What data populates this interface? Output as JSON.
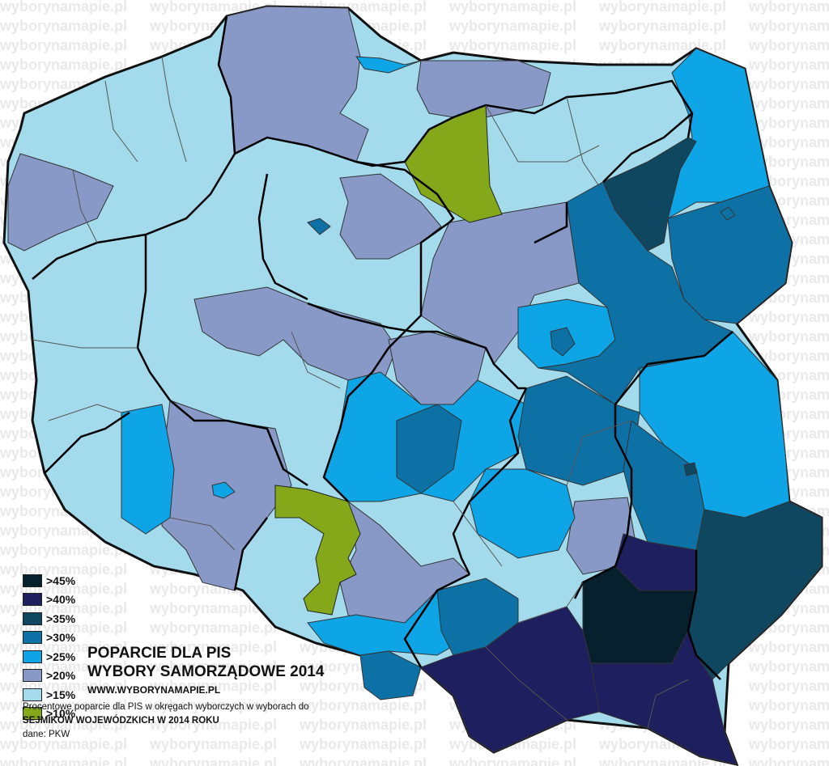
{
  "title_line1": "POPARCIE DLA PIS",
  "title_line2": "WYBORY SAMORZĄDOWE 2014",
  "website": "WWW.WYBORYNAMAPIE.PL",
  "description_line1": "Procentowe poparcie dla PIS w okręgach wyborczych w wyborach do",
  "description_line2": "SEJMIKÓW WOJEWÓDZKICH W 2014 ROKU",
  "source": "dane: PKW",
  "watermark_text": "wyborynamapie.pl",
  "legend": [
    {
      "label": ">45%",
      "color": "#07202e"
    },
    {
      "label": ">40%",
      "color": "#1d1f5e"
    },
    {
      "label": ">35%",
      "color": "#0f4660"
    },
    {
      "label": ">30%",
      "color": "#0e71a6"
    },
    {
      "label": ">25%",
      "color": "#0ea5e6"
    },
    {
      "label": ">20%",
      "color": "#8899c7"
    },
    {
      "label": ">15%",
      "color": "#a4dbec"
    },
    {
      "label": ">10%",
      "color": "#85a81b"
    }
  ]
}
